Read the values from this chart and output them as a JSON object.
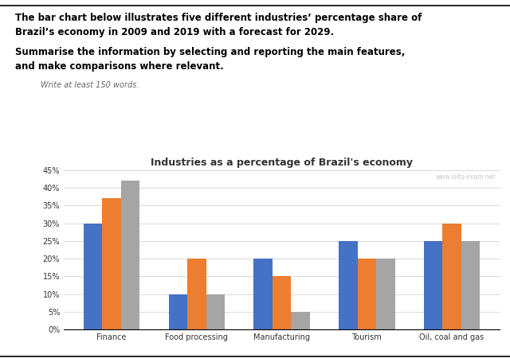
{
  "title": "Industries as a percentage of Brazil's economy",
  "watermark": "www.ielts-exam.net",
  "categories": [
    "Finance",
    "Food processing",
    "Manufacturing",
    "Tourism",
    "Oil, coal and gas"
  ],
  "years": [
    "2009",
    "2019",
    "2029"
  ],
  "values": {
    "2009": [
      30,
      10,
      20,
      25,
      25
    ],
    "2019": [
      37,
      20,
      15,
      20,
      30
    ],
    "2029": [
      42,
      10,
      5,
      20,
      25
    ]
  },
  "colors": {
    "2009": "#4472C4",
    "2019": "#ED7D31",
    "2029": "#A5A5A5"
  },
  "ylim": [
    0,
    45
  ],
  "yticks": [
    0,
    5,
    10,
    15,
    20,
    25,
    30,
    35,
    40,
    45
  ],
  "ytick_labels": [
    "0%",
    "5%",
    "10%",
    "15%",
    "20%",
    "25%",
    "30%",
    "35%",
    "40%",
    "45%"
  ],
  "bar_width": 0.22,
  "title_fontsize": 9,
  "tick_fontsize": 7,
  "background_color": "#ffffff",
  "text_color": "#333333",
  "header_text_line1": "The bar chart below illustrates five different industries’ percentage share of",
  "header_text_line2": "Brazil’s economy in 2009 and 2019 with a forecast for 2029.",
  "subheader_line1": "Summarise the information by selecting and reporting the main features,",
  "subheader_line2": "and make comparisons where relevant.",
  "small_text": "Write at least 150 words."
}
